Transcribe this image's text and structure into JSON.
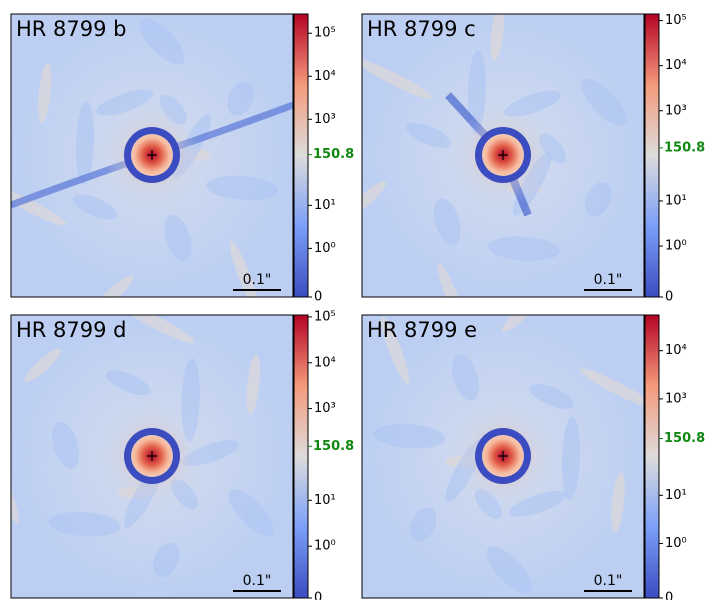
{
  "panels": [
    {
      "title": "HR 8799 b",
      "scale_bar": "0.1\"",
      "scale": "symlog",
      "linthresh": 1,
      "vlim": [
        0,
        280000
      ],
      "ticks": [
        0,
        {
          "value": 1,
          "label": "10⁰"
        },
        {
          "value": 10,
          "label": "10¹"
        },
        {
          "value": 1000,
          "label": "10³"
        },
        {
          "value": 10000,
          "label": "10⁴"
        },
        {
          "value": 100000,
          "label": "10⁵"
        }
      ],
      "marker": 150.8,
      "marker_color": "#118811"
    },
    {
      "title": "HR 8799 c",
      "scale_bar": "0.1\"",
      "scale": "symlog",
      "linthresh": 1,
      "vlim": [
        0,
        140000
      ],
      "ticks": [
        0,
        {
          "value": 1,
          "label": "10⁰"
        },
        {
          "value": 10,
          "label": "10¹"
        },
        {
          "value": 1000,
          "label": "10³"
        },
        {
          "value": 10000,
          "label": "10⁴"
        },
        {
          "value": 100000,
          "label": "10⁵"
        }
      ],
      "marker": 150.8,
      "marker_color": "#118811"
    },
    {
      "title": "HR 8799 d",
      "scale_bar": "0.1\"",
      "scale": "symlog",
      "linthresh": 1,
      "vlim": [
        0,
        110000
      ],
      "ticks": [
        0,
        {
          "value": 1,
          "label": "10⁰"
        },
        {
          "value": 10,
          "label": "10¹"
        },
        {
          "value": 1000,
          "label": "10³"
        },
        {
          "value": 10000,
          "label": "10⁴"
        },
        {
          "value": 100000,
          "label": "10⁵"
        }
      ],
      "marker": 150.8,
      "marker_color": "#118811"
    },
    {
      "title": "HR 8799 e",
      "scale_bar": "0.1\"",
      "scale": "symlog",
      "linthresh": 1,
      "vlim": [
        0,
        55000
      ],
      "ticks": [
        0,
        {
          "value": 1,
          "label": "10⁰"
        },
        {
          "value": 10,
          "label": "10¹"
        },
        {
          "value": 1000,
          "label": "10³"
        },
        {
          "value": 10000,
          "label": "10⁴"
        }
      ],
      "marker": 150.8,
      "marker_color": "#118811"
    }
  ]
}
